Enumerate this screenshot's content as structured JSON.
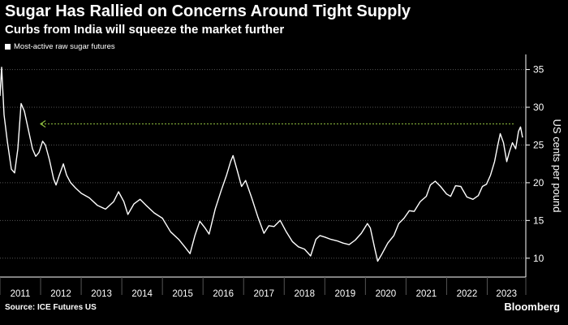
{
  "header": {
    "title": "Sugar Has Rallied on Concerns Around Tight Supply",
    "subtitle": "Curbs from India will squeeze the market further"
  },
  "footer": {
    "source": "Source: ICE Futures US",
    "brand": "Bloomberg"
  },
  "colors": {
    "background": "#000000",
    "line": "#ffffff",
    "grid": "#555555",
    "annotation": "#8fbf3f"
  },
  "chart_data": {
    "type": "line",
    "title": "Sugar Has Rallied on Concerns Around Tight Supply",
    "subtitle": "Curbs from India will squeeze the market further",
    "ylabel": "US cents per pound",
    "xlabel": "",
    "ylim": [
      7.5,
      37
    ],
    "xlim": [
      2011.0,
      2023.95
    ],
    "yticks": [
      10,
      15,
      20,
      25,
      30,
      35
    ],
    "xtick_labels": [
      "2011",
      "2012",
      "2013",
      "2014",
      "2015",
      "2016",
      "2017",
      "2018",
      "2019",
      "2020",
      "2021",
      "2022",
      "2023"
    ],
    "grid": "horizontal dotted",
    "legend": "top-left",
    "annotation": {
      "type": "horizontal-arrow",
      "y": 27.8,
      "from_x": 2023.65,
      "to_x": 2012.0
    },
    "series": [
      {
        "name": "Most-active raw sugar futures",
        "points": [
          [
            2011.0,
            31.5
          ],
          [
            2011.04,
            35.3
          ],
          [
            2011.1,
            29.0
          ],
          [
            2011.18,
            25.5
          ],
          [
            2011.28,
            21.8
          ],
          [
            2011.36,
            21.3
          ],
          [
            2011.44,
            24.5
          ],
          [
            2011.52,
            30.5
          ],
          [
            2011.6,
            29.5
          ],
          [
            2011.7,
            27.0
          ],
          [
            2011.8,
            24.5
          ],
          [
            2011.88,
            23.5
          ],
          [
            2011.96,
            24.0
          ],
          [
            2012.05,
            25.5
          ],
          [
            2012.12,
            25.0
          ],
          [
            2012.22,
            23.0
          ],
          [
            2012.32,
            20.5
          ],
          [
            2012.38,
            19.7
          ],
          [
            2012.46,
            21.0
          ],
          [
            2012.56,
            22.5
          ],
          [
            2012.64,
            21.0
          ],
          [
            2012.74,
            20.0
          ],
          [
            2012.86,
            19.3
          ],
          [
            2013.0,
            18.6
          ],
          [
            2013.2,
            18.0
          ],
          [
            2013.4,
            17.0
          ],
          [
            2013.6,
            16.5
          ],
          [
            2013.8,
            17.5
          ],
          [
            2013.92,
            18.8
          ],
          [
            2014.05,
            17.5
          ],
          [
            2014.15,
            15.8
          ],
          [
            2014.3,
            17.2
          ],
          [
            2014.45,
            17.8
          ],
          [
            2014.6,
            17.0
          ],
          [
            2014.8,
            16.0
          ],
          [
            2015.0,
            15.3
          ],
          [
            2015.2,
            13.5
          ],
          [
            2015.4,
            12.5
          ],
          [
            2015.55,
            11.5
          ],
          [
            2015.68,
            10.6
          ],
          [
            2015.8,
            13.0
          ],
          [
            2015.92,
            14.9
          ],
          [
            2016.05,
            14.0
          ],
          [
            2016.15,
            13.2
          ],
          [
            2016.3,
            16.5
          ],
          [
            2016.45,
            19.0
          ],
          [
            2016.58,
            21.0
          ],
          [
            2016.68,
            22.8
          ],
          [
            2016.74,
            23.6
          ],
          [
            2016.85,
            21.5
          ],
          [
            2016.95,
            19.5
          ],
          [
            2017.05,
            20.3
          ],
          [
            2017.2,
            18.0
          ],
          [
            2017.35,
            15.5
          ],
          [
            2017.5,
            13.3
          ],
          [
            2017.62,
            14.3
          ],
          [
            2017.75,
            14.2
          ],
          [
            2017.9,
            15.0
          ],
          [
            2018.05,
            13.5
          ],
          [
            2018.2,
            12.2
          ],
          [
            2018.35,
            11.5
          ],
          [
            2018.5,
            11.2
          ],
          [
            2018.65,
            10.3
          ],
          [
            2018.78,
            12.5
          ],
          [
            2018.88,
            13.0
          ],
          [
            2019.0,
            12.8
          ],
          [
            2019.15,
            12.5
          ],
          [
            2019.3,
            12.3
          ],
          [
            2019.45,
            12.0
          ],
          [
            2019.6,
            11.8
          ],
          [
            2019.75,
            12.4
          ],
          [
            2019.9,
            13.3
          ],
          [
            2020.05,
            14.6
          ],
          [
            2020.12,
            14.0
          ],
          [
            2020.22,
            11.5
          ],
          [
            2020.3,
            9.6
          ],
          [
            2020.4,
            10.5
          ],
          [
            2020.55,
            12.0
          ],
          [
            2020.7,
            13.0
          ],
          [
            2020.82,
            14.6
          ],
          [
            2020.95,
            15.3
          ],
          [
            2021.08,
            16.3
          ],
          [
            2021.2,
            16.2
          ],
          [
            2021.35,
            17.5
          ],
          [
            2021.5,
            18.2
          ],
          [
            2021.6,
            19.7
          ],
          [
            2021.72,
            20.2
          ],
          [
            2021.85,
            19.5
          ],
          [
            2022.0,
            18.5
          ],
          [
            2022.1,
            18.2
          ],
          [
            2022.22,
            19.6
          ],
          [
            2022.35,
            19.5
          ],
          [
            2022.5,
            18.1
          ],
          [
            2022.65,
            17.8
          ],
          [
            2022.78,
            18.3
          ],
          [
            2022.88,
            19.5
          ],
          [
            2022.98,
            19.8
          ],
          [
            2023.08,
            21.0
          ],
          [
            2023.18,
            22.8
          ],
          [
            2023.26,
            25.0
          ],
          [
            2023.32,
            26.5
          ],
          [
            2023.4,
            25.3
          ],
          [
            2023.48,
            22.8
          ],
          [
            2023.54,
            24.0
          ],
          [
            2023.62,
            25.3
          ],
          [
            2023.7,
            24.5
          ],
          [
            2023.77,
            26.8
          ],
          [
            2023.82,
            27.4
          ],
          [
            2023.87,
            26.0
          ]
        ]
      }
    ]
  }
}
